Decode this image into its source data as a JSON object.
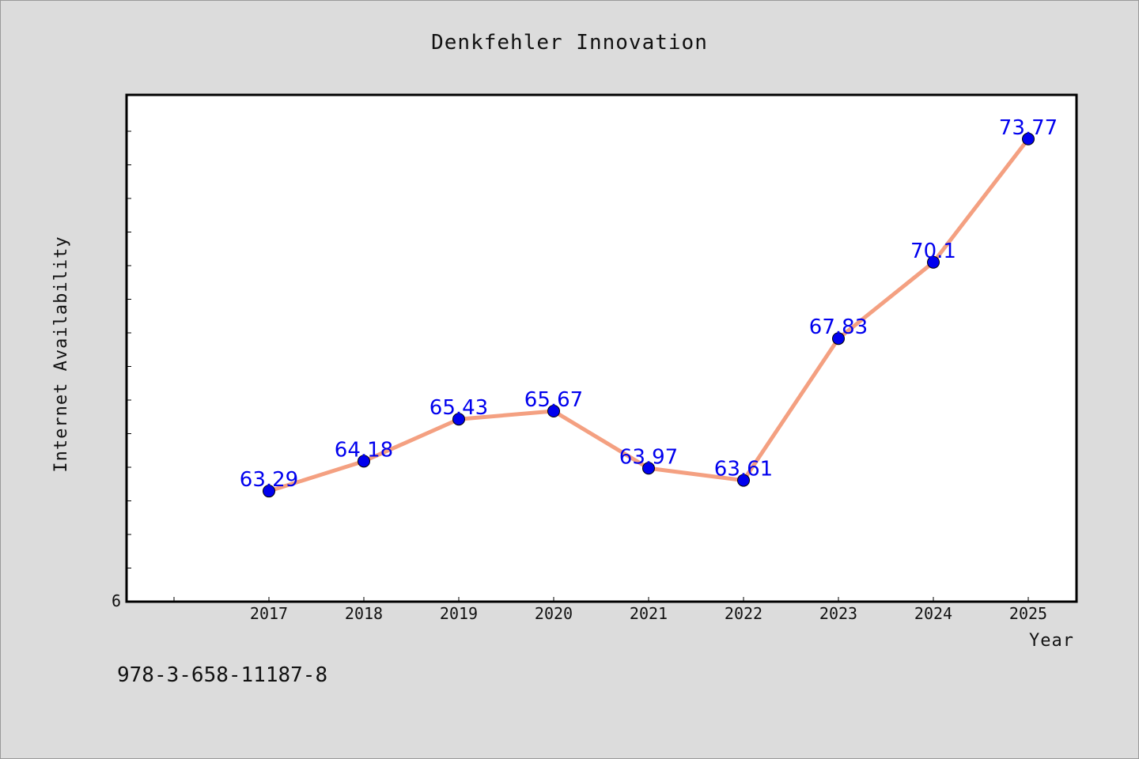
{
  "chart_data": {
    "type": "line",
    "title": "Denkfehler Innovation",
    "xlabel": "Year",
    "ylabel": "Internet Availability",
    "categories": [
      "2017",
      "2018",
      "2019",
      "2020",
      "2021",
      "2022",
      "2023",
      "2024",
      "2025"
    ],
    "series": [
      {
        "values": [
          63.29,
          64.18,
          65.43,
          65.67,
          63.97,
          63.61,
          67.83,
          70.1,
          73.77
        ],
        "data_labels": [
          "63.29",
          "64.18",
          "65.43",
          "65.67",
          "63.97",
          "63.61",
          "67.83",
          "70.1",
          "73.77"
        ],
        "line_color": "#f4a081",
        "marker_color": "#0000ee"
      }
    ],
    "ylim": [
      60.0,
      75.0
    ],
    "ytick_labels_visible": [
      "6"
    ],
    "grid": false,
    "legend": "none"
  },
  "footer": {
    "isbn": "978-3-658-11187-8"
  },
  "colors": {
    "background": "#dcdcdc",
    "plot_background": "#ffffff",
    "line": "#f4a081",
    "marker": "#0000ee",
    "data_label": "#0000ee"
  }
}
